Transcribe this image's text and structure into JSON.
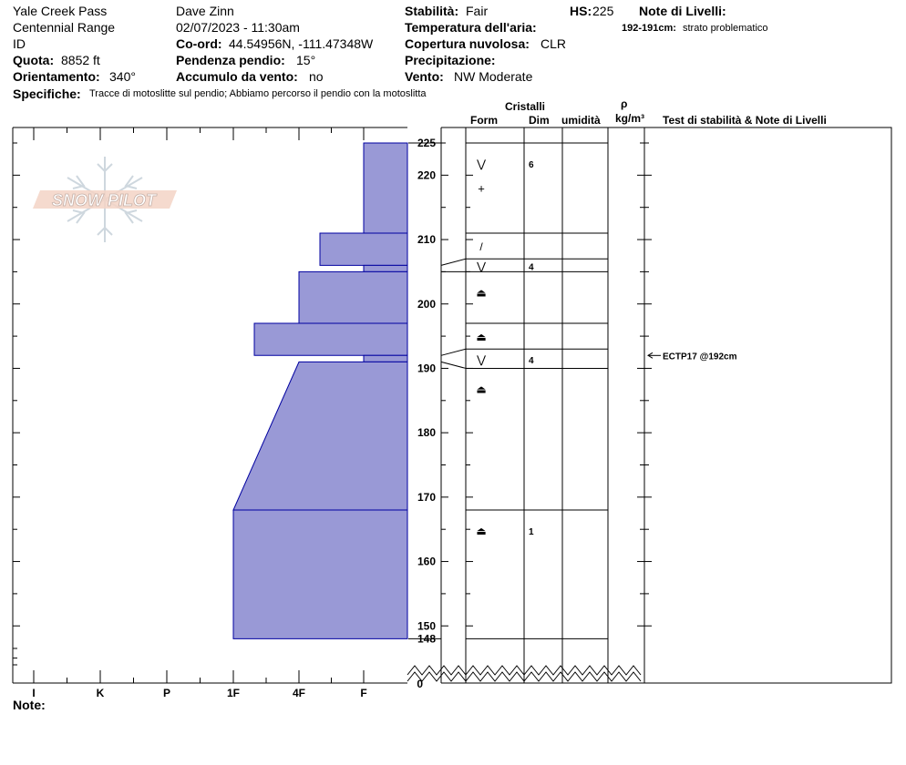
{
  "header": {
    "location": "Yale Creek Pass",
    "range": "Centennial Range",
    "id_label": "ID",
    "elevation_label": "Quota:",
    "elevation_value": "8852 ft",
    "aspect_label": "Orientamento:",
    "aspect_value": "340°",
    "specifics_label": "Specifiche:",
    "specifics_value": "Tracce di motoslitte sul pendio; Abbiamo percorso il pendio con la motoslitta",
    "observer": "Dave Zinn",
    "datetime": "02/07/2023 - 11:30am",
    "coord_label": "Co-ord:",
    "coord_value": "44.54956N, -111.47348W",
    "slope_label": "Pendenza pendio:",
    "slope_value": "15°",
    "wind_loading_label": "Accumulo da vento:",
    "wind_loading_value": "no",
    "stability_label": "Stabilità:",
    "stability_value": "Fair",
    "air_temp_label": "Temperatura dell'aria:",
    "sky_label": "Copertura nuvolosa:",
    "sky_value": "CLR",
    "precip_label": "Precipitazione:",
    "wind_label": "Vento:",
    "wind_value": "NW Moderate",
    "hs_label": "HS:",
    "hs_value": "225",
    "layer_notes_title": "Note di Livelli:",
    "layer_note_range": "192-191cm:",
    "layer_note_text": "strato problematico"
  },
  "columns": {
    "crystals": "Cristalli",
    "form": "Form",
    "dim": "Dim",
    "moisture": "umidità",
    "rho": "ρ",
    "density_unit": "kg/m³",
    "tests": "Test di stabilità & Note di Livelli"
  },
  "footer": {
    "notes_label": "Note:"
  },
  "logo": {
    "text": "SNOW PILOT"
  },
  "chart_data": {
    "type": "area",
    "title": "",
    "xlabel": "",
    "ylabel": "",
    "ylim": [
      148,
      225
    ],
    "ground_label": "0",
    "total_depth_label": "148",
    "y_ticks": [
      150,
      160,
      170,
      180,
      190,
      200,
      210,
      220
    ],
    "hardness_scale": [
      "I",
      "K",
      "P",
      "1F",
      "4F",
      "F"
    ],
    "hardness_profile": [
      {
        "top": 225,
        "bottom": 211,
        "hardness": "F",
        "hardness_bottom": "F"
      },
      {
        "top": 211,
        "bottom": 206,
        "hardness": "4F+",
        "hardness_bottom": "4F+"
      },
      {
        "top": 206,
        "bottom": 205,
        "hardness": "F",
        "hardness_bottom": "F"
      },
      {
        "top": 205,
        "bottom": 197,
        "hardness": "4F",
        "hardness_bottom": "4F"
      },
      {
        "top": 197,
        "bottom": 192,
        "hardness": "1F+",
        "hardness_bottom": "1F+"
      },
      {
        "top": 192,
        "bottom": 191,
        "hardness": "F",
        "hardness_bottom": "F"
      },
      {
        "top": 191,
        "bottom": 168,
        "hardness": "4F",
        "hardness_bottom": "1F"
      },
      {
        "top": 168,
        "bottom": 148,
        "hardness": "1F",
        "hardness_bottom": "1F"
      }
    ],
    "layers": [
      {
        "top": 225,
        "bottom": 211,
        "form": "⋁",
        "size": "6"
      },
      {
        "top": 211,
        "bottom": 207,
        "form": "/",
        "size": ""
      },
      {
        "top": 207,
        "bottom": 205,
        "form": "⋁",
        "size": "4"
      },
      {
        "top": 205,
        "bottom": 197,
        "form": "⏏",
        "size": ""
      },
      {
        "top": 197,
        "bottom": 193,
        "form": "⏏",
        "size": ""
      },
      {
        "top": 193,
        "bottom": 190,
        "form": "⋁",
        "size": "4"
      },
      {
        "top": 190,
        "bottom": 168,
        "form": "⏏",
        "size": ""
      },
      {
        "top": 168,
        "bottom": 148,
        "form": "⏏",
        "size": "1"
      }
    ],
    "extra_symbols": [
      {
        "depth": 218,
        "form": "+"
      }
    ],
    "stability_tests": [
      {
        "depth": 192,
        "text": "ECTP17 @192cm"
      }
    ],
    "colors": {
      "profile_fill": "#9999d6",
      "profile_stroke": "#0000a0"
    }
  }
}
